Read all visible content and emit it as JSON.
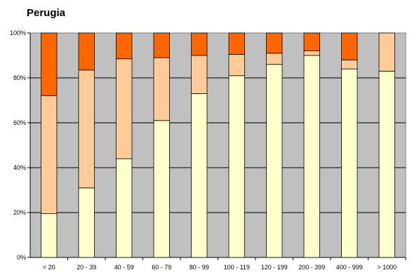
{
  "chart_data": {
    "type": "bar",
    "stacked": "percent",
    "title": "Perugia",
    "xlabel": "",
    "ylabel": "",
    "ylim": [
      0,
      100
    ],
    "y_ticks": [
      "0%",
      "20%",
      "40%",
      "60%",
      "80%",
      "100%"
    ],
    "categories": [
      "< 20",
      "20 - 39",
      "40 - 59",
      "60 - 79",
      "80 - 99",
      "100 - 119",
      "120 - 199",
      "200 - 399",
      "400 - 999",
      "> 1000"
    ],
    "series": [
      {
        "color": "#ffffcc",
        "values": [
          19.5,
          31,
          44,
          61,
          73,
          81,
          86,
          90,
          84,
          83
        ]
      },
      {
        "color": "#ffcc99",
        "values": [
          52.5,
          52.5,
          44.5,
          28,
          17,
          9.5,
          5,
          2,
          4,
          17
        ]
      },
      {
        "color": "#ff6600",
        "values": [
          28,
          16.5,
          11.5,
          11,
          10,
          9.5,
          9,
          8,
          12,
          0
        ]
      }
    ],
    "grid": true,
    "plot_background": "#c0c0c0",
    "legend": "none"
  }
}
